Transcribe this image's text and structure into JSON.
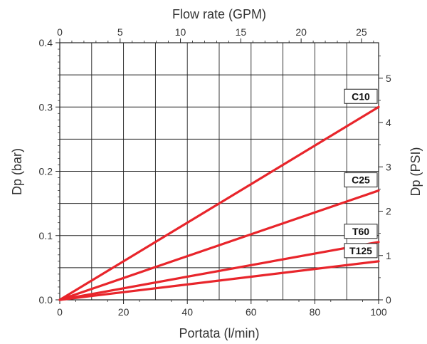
{
  "chart_data": {
    "type": "line",
    "xlabel": "Portata (l/min)",
    "ylabel": "Dp (bar)",
    "x2label": "Flow rate (GPM)",
    "y2label": "Dp (PSI)",
    "xlim": [
      0,
      100
    ],
    "ylim": [
      0,
      0.4
    ],
    "x2lim": [
      0,
      26.42
    ],
    "y2lim": [
      0,
      5.8
    ],
    "x_ticks": [
      "0",
      "20",
      "40",
      "60",
      "80",
      "100"
    ],
    "y_ticks": [
      "0.0",
      "0.1",
      "0.2",
      "0.3",
      "0.4"
    ],
    "x2_ticks": [
      "0",
      "5",
      "10",
      "15",
      "20",
      "25"
    ],
    "y2_ticks": [
      "0",
      "1",
      "2",
      "3",
      "4",
      "5"
    ],
    "grid": true,
    "line_color": "#e8252b",
    "series": [
      {
        "name": "C10",
        "x": [
          0,
          100
        ],
        "y": [
          0,
          0.3
        ]
      },
      {
        "name": "C25",
        "x": [
          0,
          100
        ],
        "y": [
          0,
          0.17
        ]
      },
      {
        "name": "T60",
        "x": [
          0,
          100
        ],
        "y": [
          0,
          0.09
        ]
      },
      {
        "name": "T125",
        "x": [
          0,
          100
        ],
        "y": [
          0,
          0.06
        ]
      }
    ]
  }
}
